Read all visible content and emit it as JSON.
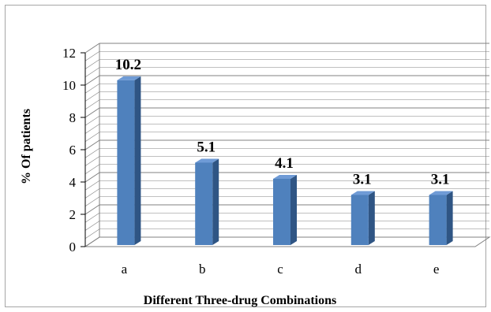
{
  "chart_data": {
    "type": "bar",
    "categories": [
      "a",
      "b",
      "c",
      "d",
      "e"
    ],
    "values": [
      10.2,
      5.1,
      4.1,
      3.1,
      3.1
    ],
    "data_labels": [
      "10.2",
      "5.1",
      "4.1",
      "3.1",
      "3.1"
    ],
    "xlabel": "Different  Three-drug Combinations",
    "ylabel": "% Of patients",
    "ylim": [
      0,
      12
    ],
    "yticks": [
      0,
      2,
      4,
      6,
      8,
      10,
      12
    ],
    "grid": true,
    "style": "3d-column",
    "colors": {
      "bar_front": "#4f81bd",
      "bar_side": "#2f5584",
      "bar_top": "#6f9bd6",
      "grid": "#808080"
    }
  }
}
